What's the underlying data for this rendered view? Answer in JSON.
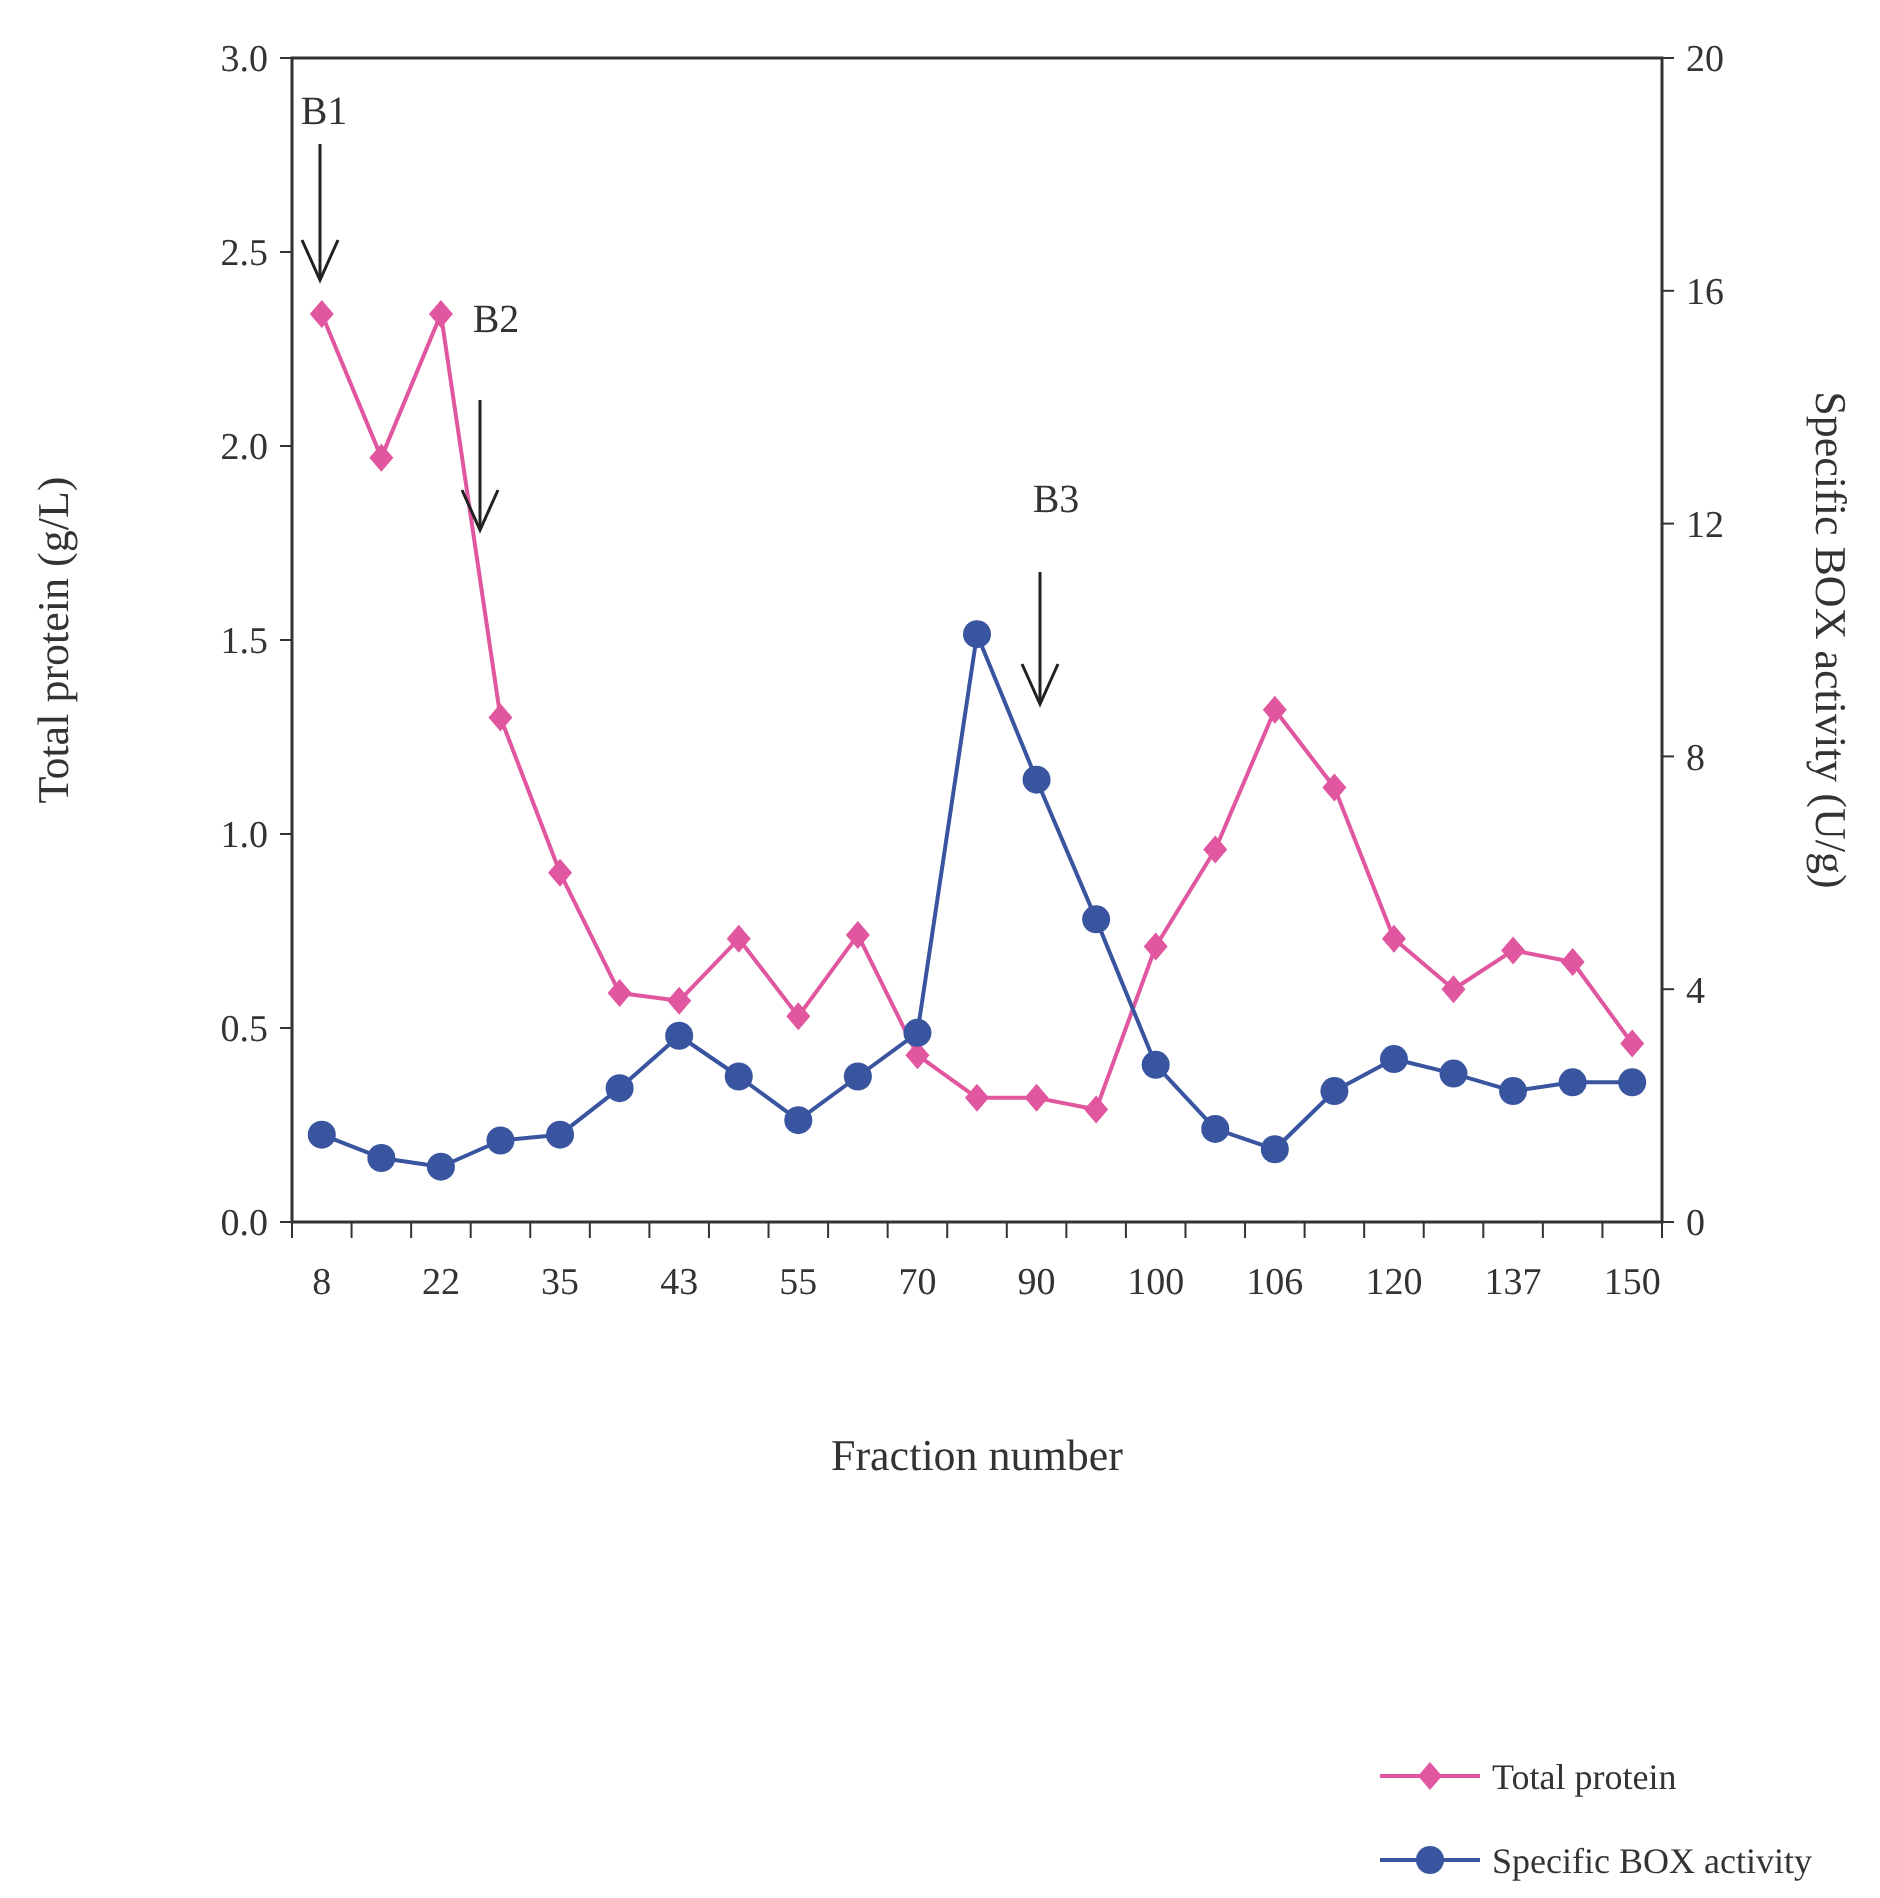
{
  "chart_data": {
    "type": "line",
    "xlabel": "Fraction number",
    "ylabel": "Total protein (g/L)",
    "y2label": "Specific BOX activity (U/g)",
    "categories": [
      "8",
      null,
      "22",
      null,
      "35",
      null,
      "43",
      null,
      "55",
      null,
      "70",
      null,
      "90",
      null,
      "100",
      null,
      "106",
      null,
      "120",
      null,
      "137",
      null,
      "150"
    ],
    "series": [
      {
        "name": "Total protein",
        "color": "#e0579f",
        "marker": "diamond",
        "values": [
          2.34,
          1.97,
          2.34,
          1.3,
          0.9,
          0.59,
          0.57,
          0.73,
          0.53,
          0.74,
          0.43,
          0.32,
          0.32,
          0.29,
          0.71,
          0.96,
          1.32,
          1.12,
          0.73,
          0.6,
          0.7,
          0.67,
          0.46
        ]
      },
      {
        "name": "Specific BOX activity",
        "color": "#3a55a0",
        "marker": "circle",
        "axis": "y2",
        "values": [
          1.5,
          1.1,
          0.95,
          1.4,
          1.5,
          2.3,
          3.2,
          2.5,
          1.75,
          2.5,
          3.25,
          10.1,
          7.6,
          5.2,
          2.7,
          1.6,
          1.25,
          2.25,
          2.8,
          2.55,
          2.25,
          2.4,
          2.4
        ]
      }
    ],
    "ylim": [
      0,
      3
    ],
    "yticks": [
      {
        "value": 0,
        "label": "0.0"
      },
      {
        "value": 0.5,
        "label": "0.5"
      },
      {
        "value": 1,
        "label": "1.0"
      },
      {
        "value": 1.5,
        "label": "1.5"
      },
      {
        "value": 2,
        "label": "2.0"
      },
      {
        "value": 2.5,
        "label": "2.5"
      },
      {
        "value": 3,
        "label": "3.0"
      }
    ],
    "y2lim": [
      0,
      20
    ],
    "y2ticks": [
      0,
      4,
      8,
      12,
      16,
      20
    ],
    "annotations": [
      "B1",
      "B2",
      "B3"
    ],
    "grid": false,
    "legend": "bottom right",
    "line_style": "solid"
  }
}
